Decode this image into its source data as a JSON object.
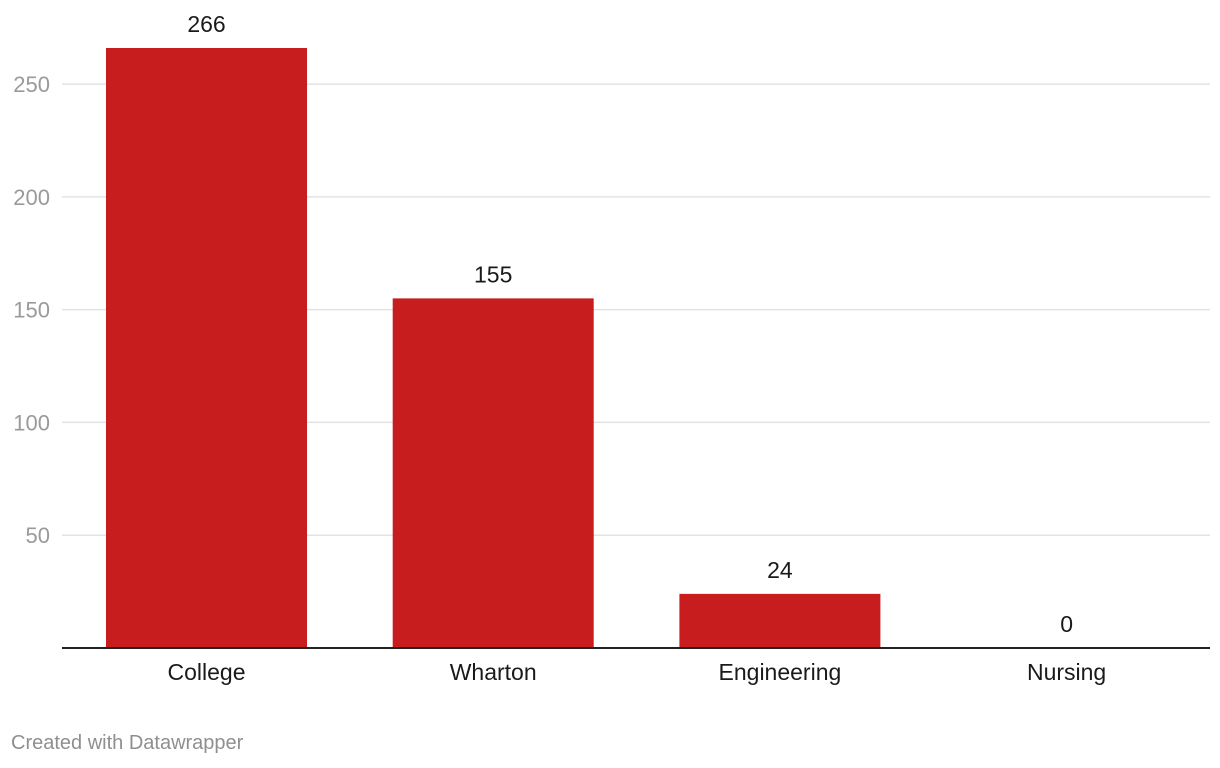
{
  "chart_data": {
    "type": "bar",
    "categories": [
      "College",
      "Wharton",
      "Engineering",
      "Nursing"
    ],
    "values": [
      266,
      155,
      24,
      0
    ],
    "yticks": [
      50,
      100,
      150,
      200,
      250
    ],
    "ylim": [
      0,
      266
    ],
    "grid": true,
    "bar_color": "#c81d1f",
    "data_labels": [
      "266",
      "155",
      "24",
      "0"
    ]
  },
  "footer": {
    "credit": "Created with Datawrapper"
  }
}
